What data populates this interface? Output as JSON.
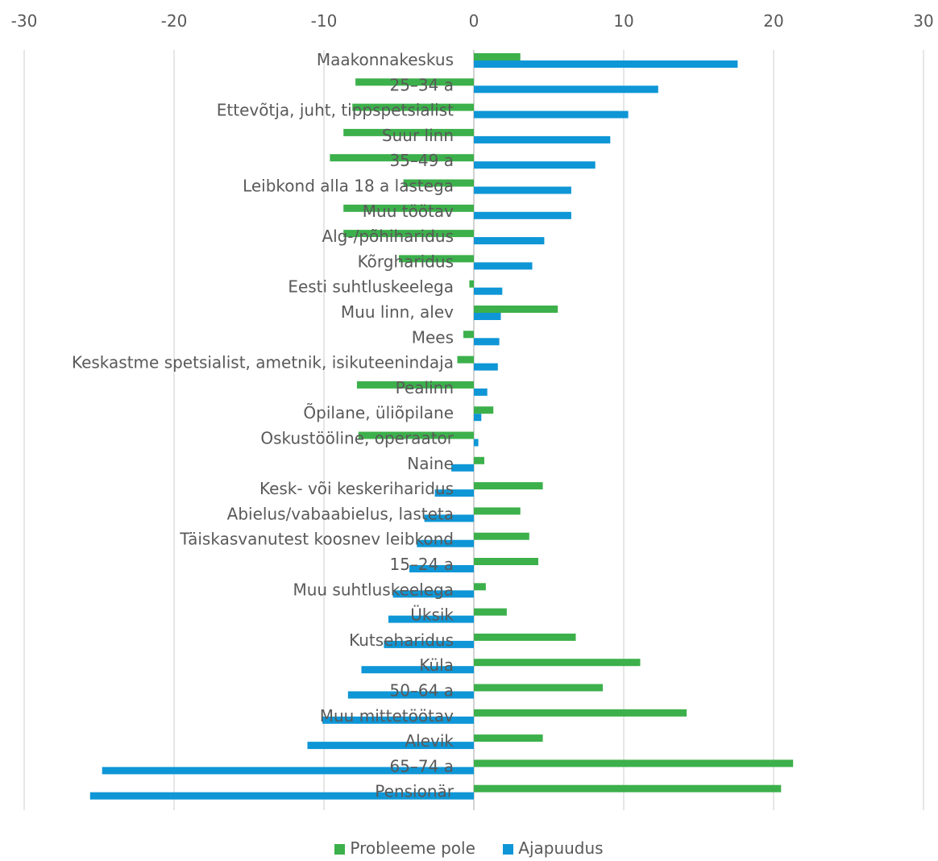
{
  "chart_data": {
    "type": "bar",
    "orientation": "horizontal",
    "xlim": [
      -30,
      30
    ],
    "x_ticks": [
      -30,
      -20,
      -10,
      0,
      10,
      20,
      30
    ],
    "x_axis_position": "top",
    "grid": "vertical",
    "legend_position": "bottom",
    "categories": [
      "Maakonnakeskus",
      "25–34 a",
      "Ettevõtja, juht, tippspetsialist",
      "Suur linn",
      "35–49 a",
      "Leibkond alla 18 a lastega",
      "Muu töötav",
      "Alg-/põhiharidus",
      "Kõrgharidus",
      "Eesti suhtluskeelega",
      "Muu linn, alev",
      "Mees",
      "Keskastme spetsialist, ametnik, isikuteenindaja",
      "Pealinn",
      "Õpilane, üliõpilane",
      "Oskustööline, operaator",
      "Naine",
      "Kesk- või keskeriharidus",
      "Abielus/vabaabielus, lasteta",
      "Täiskasvanutest koosnev leibkond",
      "15–24 a",
      "Muu suhtluskeelega",
      "Üksik",
      "Kutseharidus",
      "Küla",
      "50–64 a",
      "Muu mittetöötav",
      "Alevik",
      "65–74 a",
      "Pensionär"
    ],
    "series": [
      {
        "name": "Probleeme pole",
        "color": "#3cb04b",
        "values": [
          3.1,
          -7.9,
          -8.1,
          -8.7,
          -9.6,
          -4.7,
          -8.7,
          -8.7,
          -5.0,
          -0.3,
          5.6,
          -0.7,
          -1.1,
          -7.8,
          1.3,
          -7.7,
          0.7,
          4.6,
          3.1,
          3.7,
          4.3,
          0.8,
          2.2,
          6.8,
          11.1,
          8.6,
          14.2,
          4.6,
          21.3,
          20.5
        ]
      },
      {
        "name": "Ajapuudus",
        "color": "#0e96d6",
        "values": [
          17.6,
          12.3,
          10.3,
          9.1,
          8.1,
          6.5,
          6.5,
          4.7,
          3.9,
          1.9,
          1.8,
          1.7,
          1.6,
          0.9,
          0.5,
          0.3,
          -1.5,
          -2.6,
          -3.3,
          -3.8,
          -4.3,
          -5.4,
          -5.7,
          -6.0,
          -7.5,
          -8.4,
          -10.1,
          -11.1,
          -24.8,
          -25.6
        ]
      }
    ]
  }
}
